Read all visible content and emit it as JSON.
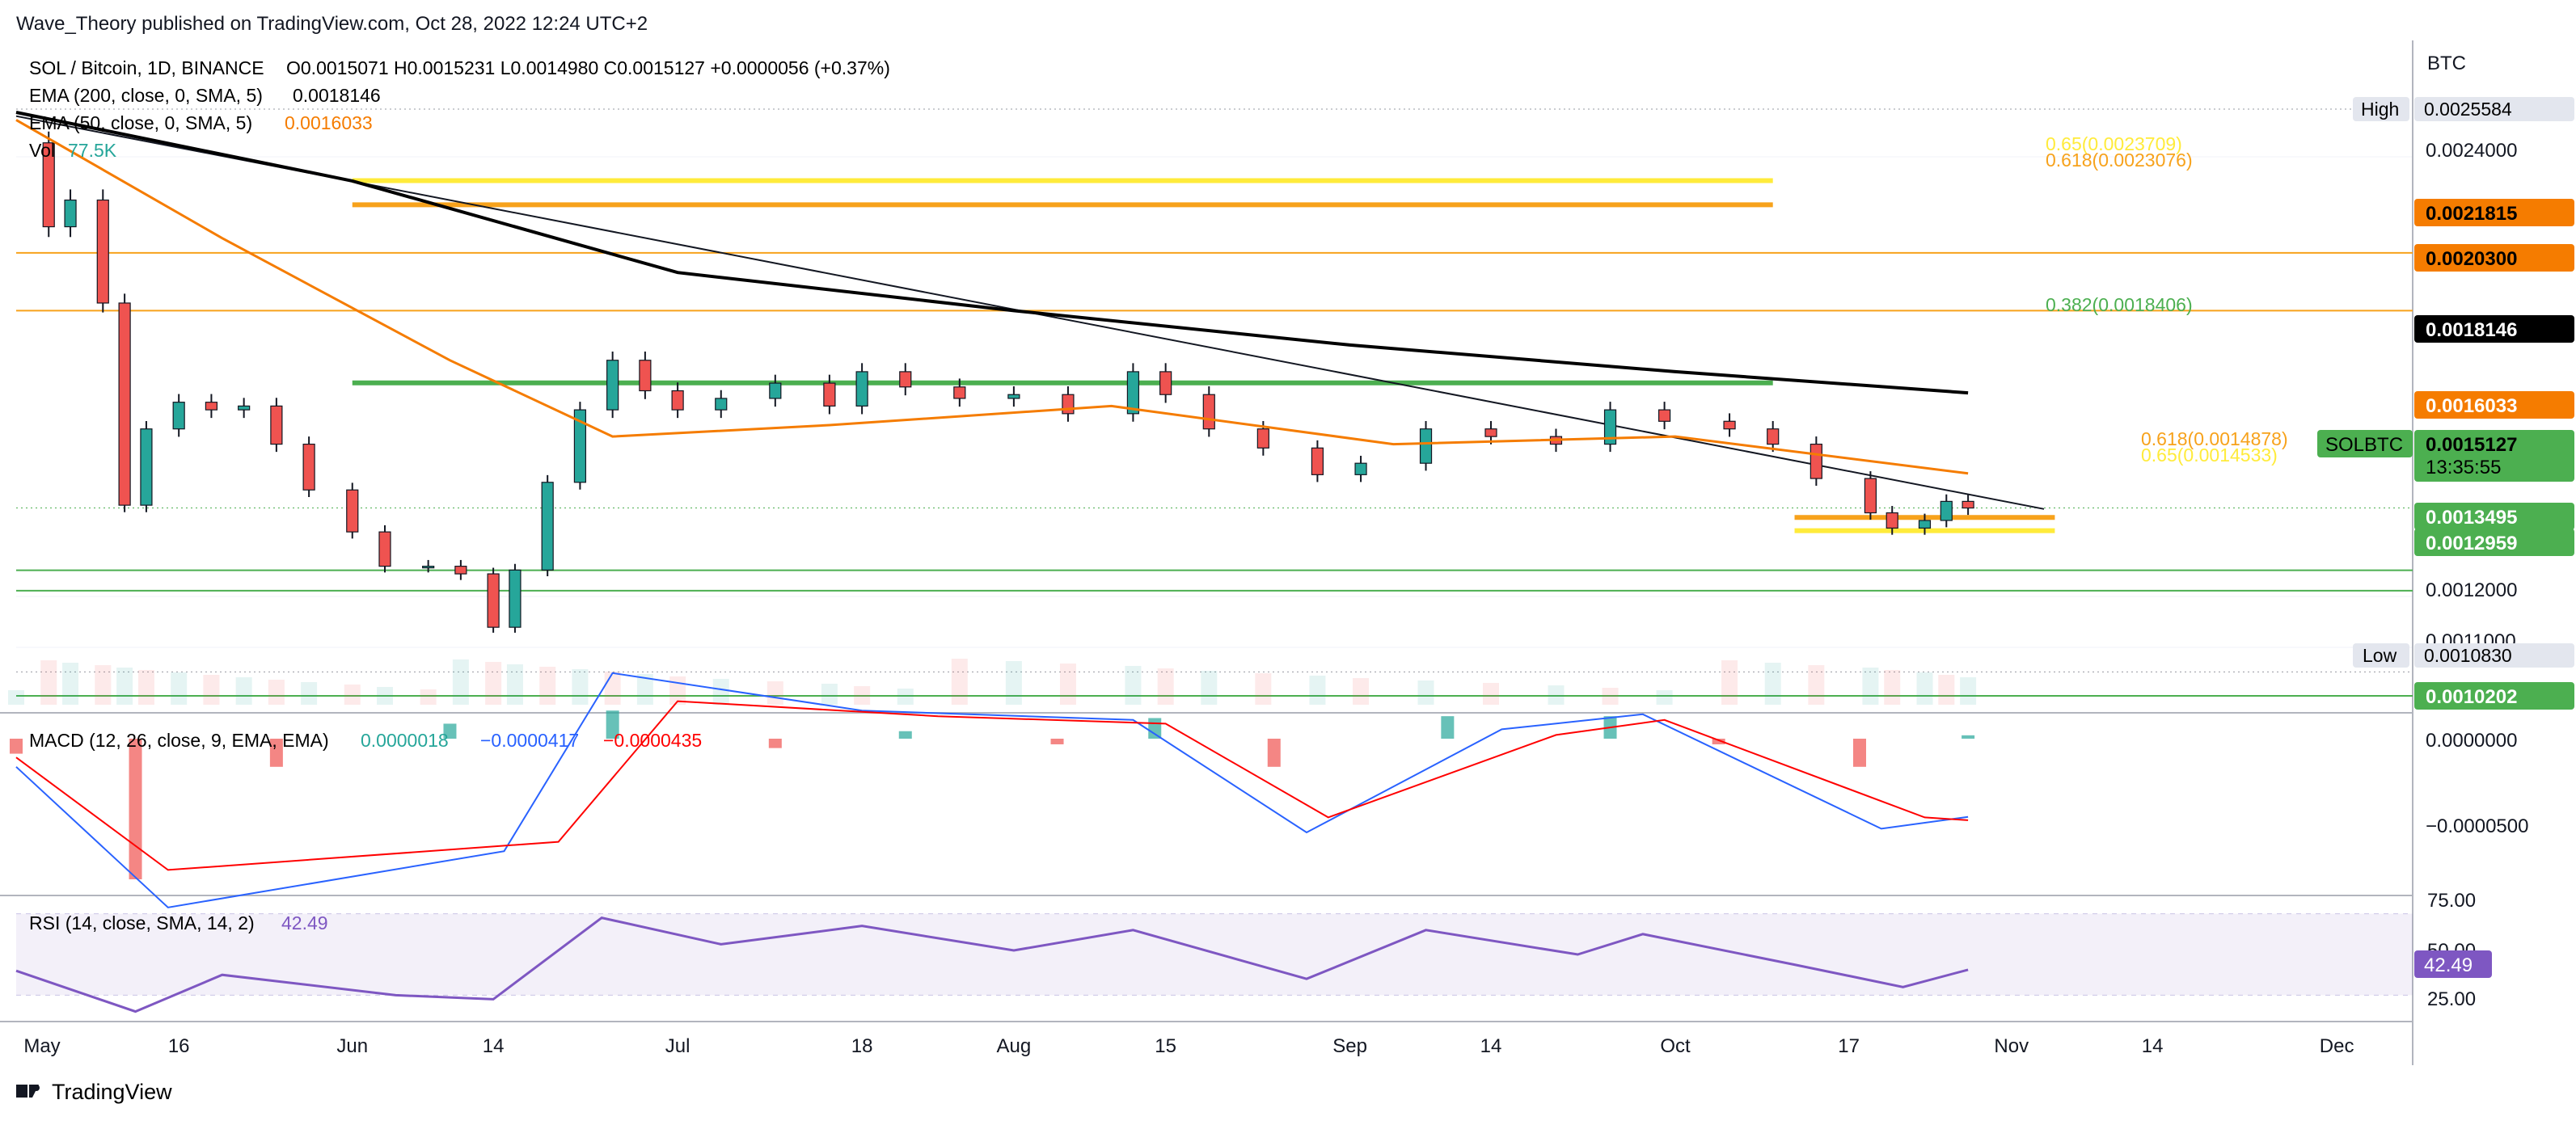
{
  "header": {
    "published": "Wave_Theory published on TradingView.com, Oct 28, 2022 12:24 UTC+2"
  },
  "legend": {
    "symbol": "SOL / Bitcoin, 1D, BINANCE",
    "ohlc": "O0.0015071 H0.0015231 L0.0014980 C0.0015127 +0.0000056 (+0.37%)",
    "ema200_label": "EMA (200, close, 0, SMA, 5)",
    "ema200_value": "0.0018146",
    "ema50_label": "EMA (50, close, 0, SMA, 5)",
    "ema50_value": "0.0016033",
    "vol_label": "Vol",
    "vol_value": "77.5K"
  },
  "axis": {
    "currency": "BTC",
    "price_ticks": [
      "0.0024000",
      "0.0012000",
      "0.0011000"
    ],
    "time_ticks": [
      "May",
      "16",
      "Jun",
      "14",
      "Jul",
      "18",
      "Aug",
      "15",
      "Sep",
      "14",
      "Oct",
      "17",
      "Nov",
      "14",
      "Dec"
    ],
    "high_label": "High",
    "high_value": "0.0025584",
    "low_label": "Low",
    "low_value": "0.0010830"
  },
  "price_badges": {
    "r1": "0.0021815",
    "r2": "0.0020300",
    "ema200": "0.0018146",
    "ema50": "0.0016033",
    "symbol": "SOLBTC",
    "last": "0.0015127",
    "countdown": "13:35:55",
    "s1": "0.0013495",
    "s2": "0.0012959",
    "s3": "0.0010202"
  },
  "fib_labels": {
    "f065_top": "0.65(0.0023709)",
    "f0618_top": "0.618(0.0023076)",
    "f0382": "0.382(0.0018406)",
    "f0618_low": "0.618(0.0014878)",
    "f065_low": "0.65(0.0014533)"
  },
  "macd": {
    "label": "MACD (12, 26, close, 9, EMA, EMA)",
    "hist": "0.0000018",
    "macd": "−0.0000417",
    "signal": "−0.0000435",
    "ticks": [
      "0.0000000",
      "−0.0000500"
    ]
  },
  "rsi": {
    "label": "RSI (14, close, SMA, 14, 2)",
    "value": "42.49",
    "ticks": [
      "75.00",
      "50.00",
      "25.00"
    ]
  },
  "footer": {
    "brand": "TradingView"
  },
  "colors": {
    "up": "#26a69a",
    "down": "#ef5350",
    "ema50": "#f57c00",
    "ema200": "#000000",
    "fib_yellow": "#ffeb3b",
    "fib_orange": "#f7a21b",
    "green_line": "#4caf50",
    "rsi": "#7e57c2",
    "macd": "#2962ff",
    "signal": "#ff0000"
  },
  "chart_data": {
    "type": "candlestick",
    "title": "SOL / Bitcoin, 1D, BINANCE",
    "ylabel": "BTC",
    "x_range": [
      "2022-05-01",
      "2022-12-08"
    ],
    "ylim": [
      0.00101,
      0.00259
    ],
    "last_close": 0.0015127,
    "session_high": 0.0025584,
    "session_low": 0.001083,
    "horizontal_levels": [
      0.0021815,
      0.00203,
      0.0013495,
      0.0012959,
      0.0010202
    ],
    "fib_levels": [
      {
        "ratio": 0.65,
        "value": 0.0023709
      },
      {
        "ratio": 0.618,
        "value": 0.0023076
      },
      {
        "ratio": 0.382,
        "value": 0.0018406
      },
      {
        "ratio": 0.618,
        "value": 0.0014878
      },
      {
        "ratio": 0.65,
        "value": 0.0014533
      }
    ],
    "trendline": [
      {
        "x": "2022-05-01",
        "y": 0.00254
      },
      {
        "x": "2022-11-04",
        "y": 0.00151
      }
    ],
    "close_series": [
      {
        "x": "2022-05-01",
        "y": 0.00247
      },
      {
        "x": "2022-05-04",
        "y": 0.00225
      },
      {
        "x": "2022-05-06",
        "y": 0.00232
      },
      {
        "x": "2022-05-09",
        "y": 0.00205
      },
      {
        "x": "2022-05-11",
        "y": 0.00152
      },
      {
        "x": "2022-05-13",
        "y": 0.00172
      },
      {
        "x": "2022-05-16",
        "y": 0.00179
      },
      {
        "x": "2022-05-19",
        "y": 0.00177
      },
      {
        "x": "2022-05-22",
        "y": 0.00178
      },
      {
        "x": "2022-05-25",
        "y": 0.00168
      },
      {
        "x": "2022-05-28",
        "y": 0.00156
      },
      {
        "x": "2022-06-01",
        "y": 0.00145
      },
      {
        "x": "2022-06-04",
        "y": 0.00136
      },
      {
        "x": "2022-06-08",
        "y": 0.00136
      },
      {
        "x": "2022-06-11",
        "y": 0.00134
      },
      {
        "x": "2022-06-14",
        "y": 0.0012
      },
      {
        "x": "2022-06-16",
        "y": 0.00135
      },
      {
        "x": "2022-06-19",
        "y": 0.00158
      },
      {
        "x": "2022-06-22",
        "y": 0.00177
      },
      {
        "x": "2022-06-25",
        "y": 0.0019
      },
      {
        "x": "2022-06-28",
        "y": 0.00182
      },
      {
        "x": "2022-07-01",
        "y": 0.00177
      },
      {
        "x": "2022-07-05",
        "y": 0.0018
      },
      {
        "x": "2022-07-10",
        "y": 0.00184
      },
      {
        "x": "2022-07-15",
        "y": 0.00178
      },
      {
        "x": "2022-07-18",
        "y": 0.00187
      },
      {
        "x": "2022-07-22",
        "y": 0.00183
      },
      {
        "x": "2022-07-27",
        "y": 0.0018
      },
      {
        "x": "2022-08-01",
        "y": 0.00181
      },
      {
        "x": "2022-08-06",
        "y": 0.00176
      },
      {
        "x": "2022-08-12",
        "y": 0.00187
      },
      {
        "x": "2022-08-15",
        "y": 0.00181
      },
      {
        "x": "2022-08-19",
        "y": 0.00172
      },
      {
        "x": "2022-08-24",
        "y": 0.00167
      },
      {
        "x": "2022-08-29",
        "y": 0.0016
      },
      {
        "x": "2022-09-02",
        "y": 0.00163
      },
      {
        "x": "2022-09-08",
        "y": 0.00172
      },
      {
        "x": "2022-09-14",
        "y": 0.0017
      },
      {
        "x": "2022-09-20",
        "y": 0.00168
      },
      {
        "x": "2022-09-25",
        "y": 0.00177
      },
      {
        "x": "2022-09-30",
        "y": 0.00174
      },
      {
        "x": "2022-10-06",
        "y": 0.00172
      },
      {
        "x": "2022-10-10",
        "y": 0.00168
      },
      {
        "x": "2022-10-14",
        "y": 0.00159
      },
      {
        "x": "2022-10-19",
        "y": 0.0015
      },
      {
        "x": "2022-10-21",
        "y": 0.00146
      },
      {
        "x": "2022-10-24",
        "y": 0.00148
      },
      {
        "x": "2022-10-26",
        "y": 0.00153
      },
      {
        "x": "2022-10-28",
        "y": 0.0015127
      }
    ],
    "ema200_series": [
      {
        "x": "2022-05-01",
        "y": 0.00255
      },
      {
        "x": "2022-06-01",
        "y": 0.00237
      },
      {
        "x": "2022-07-01",
        "y": 0.00213
      },
      {
        "x": "2022-08-01",
        "y": 0.00203
      },
      {
        "x": "2022-09-01",
        "y": 0.00194
      },
      {
        "x": "2022-10-01",
        "y": 0.00187
      },
      {
        "x": "2022-10-28",
        "y": 0.0018146
      }
    ],
    "ema50_series": [
      {
        "x": "2022-05-01",
        "y": 0.00253
      },
      {
        "x": "2022-05-20",
        "y": 0.00222
      },
      {
        "x": "2022-06-10",
        "y": 0.0019
      },
      {
        "x": "2022-06-25",
        "y": 0.0017
      },
      {
        "x": "2022-07-15",
        "y": 0.00173
      },
      {
        "x": "2022-08-10",
        "y": 0.00178
      },
      {
        "x": "2022-09-05",
        "y": 0.00168
      },
      {
        "x": "2022-10-01",
        "y": 0.0017
      },
      {
        "x": "2022-10-28",
        "y": 0.0016033
      }
    ],
    "rsi_series": [
      {
        "x": "2022-05-01",
        "y": 42
      },
      {
        "x": "2022-05-12",
        "y": 22
      },
      {
        "x": "2022-05-20",
        "y": 40
      },
      {
        "x": "2022-06-05",
        "y": 30
      },
      {
        "x": "2022-06-14",
        "y": 28
      },
      {
        "x": "2022-06-24",
        "y": 68
      },
      {
        "x": "2022-07-05",
        "y": 55
      },
      {
        "x": "2022-07-18",
        "y": 64
      },
      {
        "x": "2022-08-01",
        "y": 52
      },
      {
        "x": "2022-08-12",
        "y": 62
      },
      {
        "x": "2022-08-28",
        "y": 38
      },
      {
        "x": "2022-09-08",
        "y": 62
      },
      {
        "x": "2022-09-22",
        "y": 50
      },
      {
        "x": "2022-09-28",
        "y": 60
      },
      {
        "x": "2022-10-12",
        "y": 45
      },
      {
        "x": "2022-10-22",
        "y": 34
      },
      {
        "x": "2022-10-28",
        "y": 42.49
      }
    ],
    "macd_hist": [
      {
        "x": "2022-05-01",
        "y": -8e-06
      },
      {
        "x": "2022-05-12",
        "y": -7.5e-05
      },
      {
        "x": "2022-05-25",
        "y": -1.5e-05
      },
      {
        "x": "2022-06-10",
        "y": 8e-06
      },
      {
        "x": "2022-06-25",
        "y": 1.5e-05
      },
      {
        "x": "2022-07-10",
        "y": -5e-06
      },
      {
        "x": "2022-07-22",
        "y": 4e-06
      },
      {
        "x": "2022-08-05",
        "y": -3e-06
      },
      {
        "x": "2022-08-14",
        "y": 1.1e-05
      },
      {
        "x": "2022-08-25",
        "y": -1.5e-05
      },
      {
        "x": "2022-09-10",
        "y": 1.2e-05
      },
      {
        "x": "2022-09-25",
        "y": 1.2e-05
      },
      {
        "x": "2022-10-05",
        "y": -3e-06
      },
      {
        "x": "2022-10-18",
        "y": -1.5e-05
      },
      {
        "x": "2022-10-28",
        "y": 1.8e-06
      }
    ],
    "macd_line": [
      {
        "x": "2022-05-01",
        "y": -1.5e-05
      },
      {
        "x": "2022-05-15",
        "y": -9e-05
      },
      {
        "x": "2022-06-15",
        "y": -6e-05
      },
      {
        "x": "2022-06-25",
        "y": 3.5e-05
      },
      {
        "x": "2022-07-18",
        "y": 1.5e-05
      },
      {
        "x": "2022-08-12",
        "y": 1e-05
      },
      {
        "x": "2022-08-28",
        "y": -5e-05
      },
      {
        "x": "2022-09-15",
        "y": 5e-06
      },
      {
        "x": "2022-09-28",
        "y": 1.3e-05
      },
      {
        "x": "2022-10-20",
        "y": -4.8e-05
      },
      {
        "x": "2022-10-28",
        "y": -4.17e-05
      }
    ],
    "signal_line": [
      {
        "x": "2022-05-01",
        "y": -1e-05
      },
      {
        "x": "2022-05-15",
        "y": -7e-05
      },
      {
        "x": "2022-06-20",
        "y": -5.5e-05
      },
      {
        "x": "2022-07-01",
        "y": 2e-05
      },
      {
        "x": "2022-07-25",
        "y": 1.2e-05
      },
      {
        "x": "2022-08-15",
        "y": 8e-06
      },
      {
        "x": "2022-08-30",
        "y": -4.2e-05
      },
      {
        "x": "2022-09-20",
        "y": 2e-06
      },
      {
        "x": "2022-09-30",
        "y": 1e-05
      },
      {
        "x": "2022-10-24",
        "y": -4.2e-05
      },
      {
        "x": "2022-10-28",
        "y": -4.35e-05
      }
    ]
  }
}
